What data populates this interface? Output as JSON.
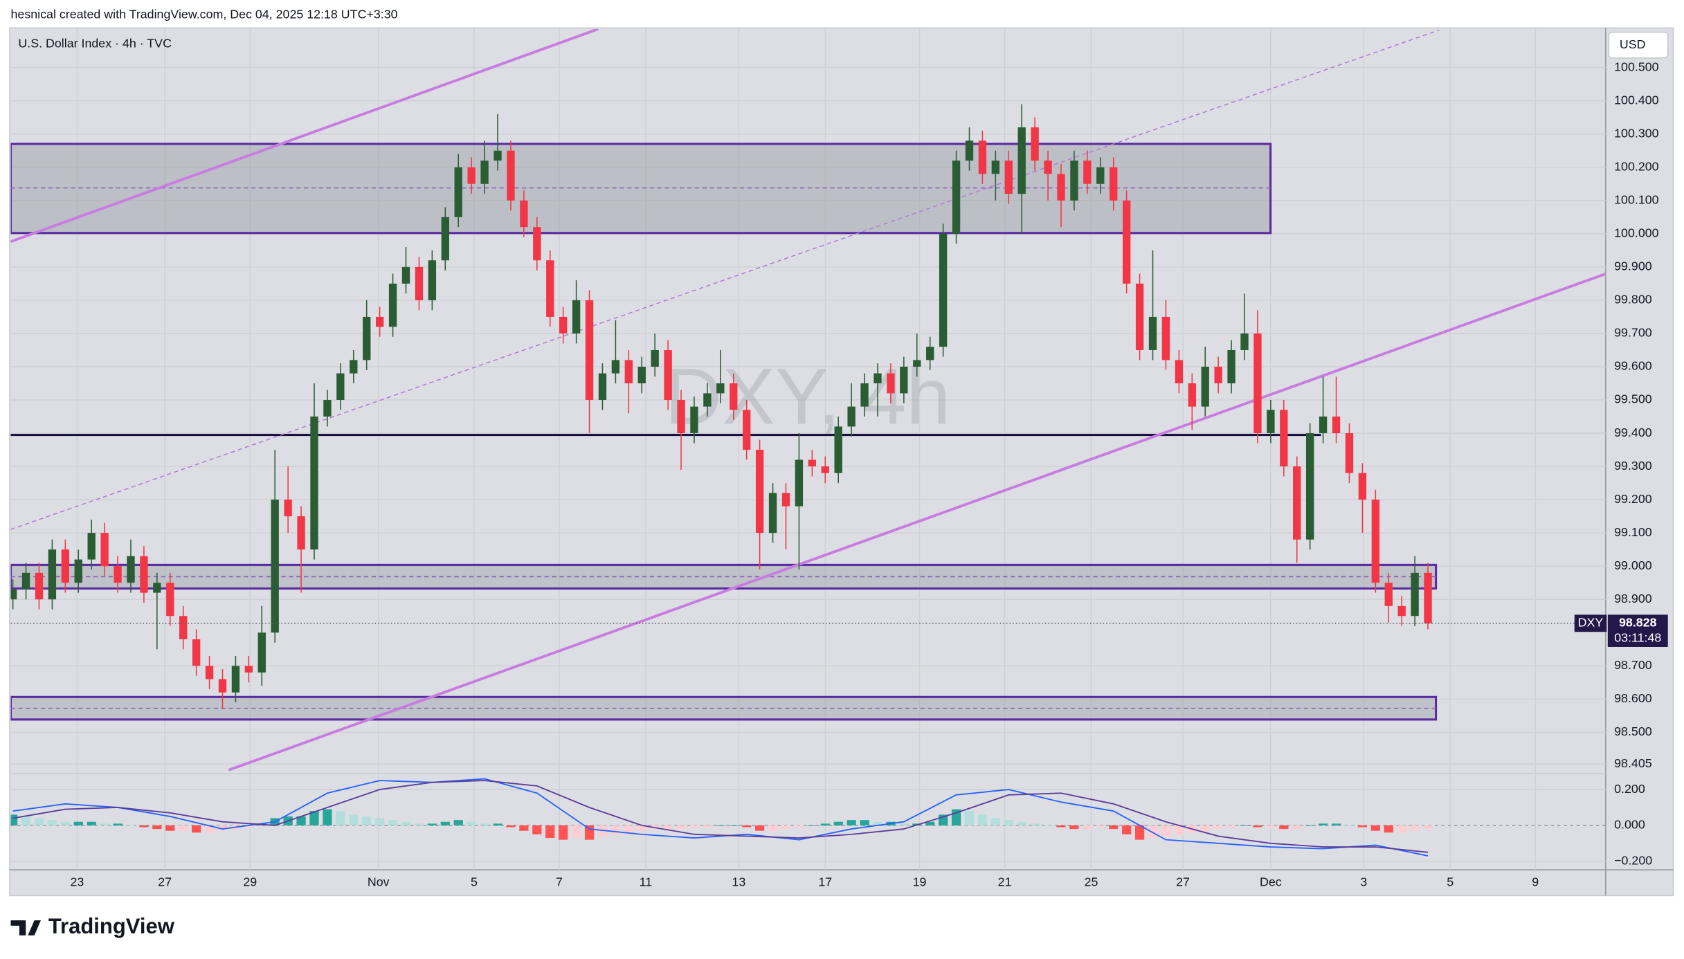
{
  "header": {
    "attribution": "hesnical created with TradingView.com, Dec 04, 2025 12:18 UTC+3:30",
    "logo": "TradingView"
  },
  "chart_data": {
    "type": "candlestick",
    "title": "U.S. Dollar Index · 4h · TVC",
    "watermark": "DXY, 4h",
    "currency": "USD",
    "symbol": "DXY",
    "countdown": "03:11:48",
    "x": [
      0,
      1,
      2,
      3,
      4,
      5,
      6,
      7,
      8,
      9,
      10,
      11,
      12,
      13,
      14,
      15,
      16,
      17,
      18,
      19,
      20,
      21,
      22,
      23,
      24,
      25,
      26,
      27,
      28,
      29,
      30,
      31,
      32,
      33,
      34,
      35,
      36,
      37,
      38,
      39,
      40,
      41,
      42,
      43,
      44,
      45,
      46,
      47,
      48,
      49,
      50,
      51,
      52,
      53,
      54,
      55,
      56,
      57,
      58,
      59,
      60,
      61,
      62,
      63,
      64,
      65,
      66,
      67,
      68,
      69,
      70,
      71,
      72,
      73,
      74,
      75,
      76,
      77,
      78,
      79,
      80,
      81,
      82,
      83,
      84,
      85,
      86,
      87,
      88,
      89,
      90,
      91,
      92,
      93,
      94,
      95,
      96,
      97,
      98,
      99,
      100,
      101,
      102,
      103,
      104,
      105,
      106,
      107,
      108
    ],
    "open": [
      98.9,
      98.93,
      98.98,
      98.9,
      99.05,
      98.95,
      99.02,
      99.1,
      99.0,
      98.95,
      99.03,
      98.92,
      98.95,
      98.85,
      98.78,
      98.7,
      98.66,
      98.62,
      98.7,
      98.68,
      98.8,
      99.2,
      99.15,
      99.05,
      99.45,
      99.5,
      99.58,
      99.62,
      99.75,
      99.72,
      99.85,
      99.9,
      99.8,
      99.92,
      100.05,
      100.2,
      100.15,
      100.22,
      100.25,
      100.1,
      100.02,
      99.92,
      99.75,
      99.7,
      99.8,
      99.5,
      99.58,
      99.62,
      99.55,
      99.6,
      99.65,
      99.5,
      99.4,
      99.48,
      99.52,
      99.55,
      99.47,
      99.35,
      99.1,
      99.22,
      99.18,
      99.32,
      99.3,
      99.28,
      99.42,
      99.48,
      99.55,
      99.58,
      99.52,
      99.6,
      99.62,
      99.66,
      100.0,
      100.22,
      100.28,
      100.18,
      100.22,
      100.12,
      100.32,
      100.22,
      100.18,
      100.1,
      100.22,
      100.15,
      100.2,
      100.1,
      99.85,
      99.65,
      99.75,
      99.62,
      99.55,
      99.48,
      99.6,
      99.55,
      99.65,
      99.7,
      99.4,
      99.47,
      99.3,
      99.08,
      99.4,
      99.45,
      99.4,
      99.28,
      99.2,
      98.95,
      98.88,
      98.85,
      98.98
    ],
    "high": [
      98.96,
      99.01,
      99.01,
      99.08,
      99.08,
      99.05,
      99.14,
      99.13,
      99.03,
      99.08,
      99.06,
      98.98,
      98.98,
      98.88,
      98.81,
      98.73,
      98.69,
      98.73,
      98.73,
      98.88,
      99.35,
      99.3,
      99.18,
      99.55,
      99.53,
      99.61,
      99.65,
      99.8,
      99.78,
      99.88,
      99.96,
      99.93,
      99.95,
      100.08,
      100.24,
      100.23,
      100.28,
      100.36,
      100.28,
      100.13,
      100.05,
      99.95,
      99.78,
      99.86,
      99.83,
      99.61,
      99.74,
      99.65,
      99.63,
      99.7,
      99.68,
      99.53,
      99.51,
      99.55,
      99.65,
      99.58,
      99.5,
      99.38,
      99.25,
      99.25,
      99.4,
      99.35,
      99.33,
      99.45,
      99.55,
      99.58,
      99.61,
      99.61,
      99.63,
      99.7,
      99.69,
      100.03,
      100.25,
      100.32,
      100.31,
      100.25,
      100.25,
      100.39,
      100.35,
      100.25,
      100.21,
      100.25,
      100.25,
      100.23,
      100.23,
      100.13,
      99.88,
      99.95,
      99.8,
      99.65,
      99.58,
      99.66,
      99.63,
      99.68,
      99.82,
      99.77,
      99.5,
      99.5,
      99.33,
      99.43,
      99.57,
      99.57,
      99.43,
      99.31,
      99.23,
      98.98,
      98.91,
      99.03,
      99.01
    ],
    "low": [
      98.87,
      98.9,
      98.87,
      98.87,
      98.92,
      98.92,
      98.99,
      98.97,
      98.92,
      98.92,
      98.89,
      98.75,
      98.82,
      98.75,
      98.67,
      98.63,
      98.57,
      98.59,
      98.65,
      98.64,
      98.77,
      99.1,
      98.92,
      99.02,
      99.42,
      99.47,
      99.55,
      99.59,
      99.69,
      99.69,
      99.82,
      99.77,
      99.77,
      99.89,
      100.02,
      100.12,
      100.12,
      100.19,
      100.07,
      99.99,
      99.89,
      99.72,
      99.67,
      99.67,
      99.4,
      99.47,
      99.55,
      99.46,
      99.52,
      99.57,
      99.47,
      99.29,
      99.37,
      99.45,
      99.49,
      99.44,
      99.32,
      98.99,
      99.07,
      99.05,
      98.99,
      99.27,
      99.25,
      99.25,
      99.39,
      99.45,
      99.45,
      99.49,
      99.49,
      99.57,
      99.59,
      99.63,
      99.97,
      100.19,
      100.15,
      100.1,
      100.09,
      100.0,
      100.19,
      100.1,
      100.02,
      100.07,
      100.12,
      100.12,
      100.07,
      99.82,
      99.62,
      99.62,
      99.59,
      99.52,
      99.41,
      99.45,
      99.52,
      99.52,
      99.62,
      99.37,
      99.37,
      99.27,
      99.01,
      99.05,
      99.37,
      99.37,
      99.25,
      99.1,
      98.92,
      98.83,
      98.82,
      98.82,
      98.81
    ],
    "close": [
      98.93,
      98.98,
      98.9,
      99.05,
      98.95,
      99.02,
      99.1,
      99.0,
      98.95,
      99.03,
      98.92,
      98.95,
      98.85,
      98.78,
      98.7,
      98.66,
      98.62,
      98.7,
      98.68,
      98.8,
      99.2,
      99.15,
      99.05,
      99.45,
      99.5,
      99.58,
      99.62,
      99.75,
      99.72,
      99.85,
      99.9,
      99.8,
      99.92,
      100.05,
      100.2,
      100.15,
      100.22,
      100.25,
      100.1,
      100.02,
      99.92,
      99.75,
      99.7,
      99.8,
      99.5,
      99.58,
      99.62,
      99.55,
      99.6,
      99.65,
      99.5,
      99.4,
      99.48,
      99.52,
      99.55,
      99.47,
      99.35,
      99.1,
      99.22,
      99.18,
      99.32,
      99.3,
      99.28,
      99.42,
      99.48,
      99.55,
      99.58,
      99.52,
      99.6,
      99.62,
      99.66,
      100.0,
      100.22,
      100.28,
      100.18,
      100.22,
      100.12,
      100.32,
      100.22,
      100.18,
      100.1,
      100.22,
      100.15,
      100.2,
      100.1,
      99.85,
      99.65,
      99.75,
      99.62,
      99.55,
      99.48,
      99.6,
      99.55,
      99.65,
      99.7,
      99.4,
      99.47,
      99.3,
      99.08,
      99.4,
      99.45,
      99.4,
      99.28,
      99.2,
      98.95,
      98.88,
      98.85,
      98.98,
      98.828
    ],
    "up_color": "#2b5d34",
    "down_color": "#f23645",
    "xlim": [
      -0.164,
      121.56
    ],
    "ylim": [
      98.377,
      100.616
    ],
    "xticks": [
      {
        "value": 4.9,
        "label": "23"
      },
      {
        "value": 11.6,
        "label": "27"
      },
      {
        "value": 18.1,
        "label": "29"
      },
      {
        "value": 27.9,
        "label": "Nov"
      },
      {
        "value": 35.2,
        "label": "5"
      },
      {
        "value": 41.7,
        "label": "7"
      },
      {
        "value": 48.3,
        "label": "11"
      },
      {
        "value": 55.4,
        "label": "13"
      },
      {
        "value": 62,
        "label": "17"
      },
      {
        "value": 69.2,
        "label": "19"
      },
      {
        "value": 75.7,
        "label": "21"
      },
      {
        "value": 82.3,
        "label": "25"
      },
      {
        "value": 89.3,
        "label": "27"
      },
      {
        "value": 96,
        "label": "Dec"
      },
      {
        "value": 103.1,
        "label": "3"
      },
      {
        "value": 109.7,
        "label": "5"
      },
      {
        "value": 116.2,
        "label": "9"
      }
    ],
    "yticks": [
      {
        "value": 98.405,
        "label": "98.405"
      },
      {
        "value": 98.5,
        "label": "98.500"
      },
      {
        "value": 98.6,
        "label": "98.600"
      },
      {
        "value": 98.7,
        "label": "98.700"
      },
      {
        "value": 98.9,
        "label": "98.900"
      },
      {
        "value": 99,
        "label": "99.000"
      },
      {
        "value": 99.1,
        "label": "99.100"
      },
      {
        "value": 99.2,
        "label": "99.200"
      },
      {
        "value": 99.3,
        "label": "99.300"
      },
      {
        "value": 99.4,
        "label": "99.400"
      },
      {
        "value": 99.5,
        "label": "99.500"
      },
      {
        "value": 99.6,
        "label": "99.600"
      },
      {
        "value": 99.7,
        "label": "99.700"
      },
      {
        "value": 99.8,
        "label": "99.800"
      },
      {
        "value": 99.9,
        "label": "99.900"
      },
      {
        "value": 100,
        "label": "100.000"
      },
      {
        "value": 100.1,
        "label": "100.100"
      },
      {
        "value": 100.2,
        "label": "100.200"
      },
      {
        "value": 100.3,
        "label": "100.300"
      },
      {
        "value": 100.4,
        "label": "100.400"
      },
      {
        "value": 100.5,
        "label": "100.500"
      }
    ],
    "grid": true,
    "indicator": {
      "type": "macd",
      "ylim": [
        -0.248,
        0.285
      ],
      "yticks": [
        {
          "value": 0.2,
          "label": "0.200"
        },
        {
          "value": 0,
          "label": "0.000"
        },
        {
          "value": -0.2,
          "label": "−0.200"
        }
      ],
      "histogram": [
        0.06,
        0.05,
        0.04,
        0.03,
        0.02,
        0.02,
        0.02,
        0.01,
        0.01,
        0.0,
        -0.01,
        -0.02,
        -0.03,
        -0.03,
        -0.04,
        -0.04,
        -0.03,
        -0.02,
        -0.01,
        0.01,
        0.04,
        0.05,
        0.05,
        0.08,
        0.09,
        0.08,
        0.06,
        0.05,
        0.04,
        0.03,
        0.02,
        0.01,
        0.01,
        0.02,
        0.03,
        0.02,
        0.01,
        0.01,
        -0.01,
        -0.03,
        -0.05,
        -0.07,
        -0.08,
        -0.07,
        -0.08,
        -0.06,
        -0.05,
        -0.04,
        -0.03,
        -0.02,
        -0.02,
        -0.02,
        -0.01,
        -0.01,
        0.0,
        0.0,
        -0.01,
        -0.03,
        -0.03,
        -0.02,
        -0.01,
        0.0,
        0.01,
        0.02,
        0.03,
        0.03,
        0.02,
        0.02,
        0.01,
        0.01,
        0.02,
        0.06,
        0.09,
        0.08,
        0.06,
        0.04,
        0.03,
        0.02,
        0.01,
        0.0,
        -0.01,
        -0.02,
        -0.02,
        -0.01,
        -0.02,
        -0.05,
        -0.08,
        -0.07,
        -0.06,
        -0.05,
        -0.04,
        -0.03,
        -0.02,
        -0.01,
        0.0,
        -0.01,
        -0.01,
        -0.02,
        -0.02,
        0.0,
        0.01,
        0.01,
        0.0,
        -0.01,
        -0.03,
        -0.04,
        -0.04,
        -0.03,
        -0.02
      ],
      "histogram_colors": [
        "#26a69a",
        "#b2dfdb",
        "#ff5252",
        "#ffcdd2"
      ],
      "macd_line": {
        "color": "#2962ff",
        "x": [
          0,
          4,
          8,
          12,
          16,
          20,
          24,
          28,
          32,
          36,
          40,
          44,
          48,
          52,
          56,
          60,
          64,
          68,
          72,
          76,
          80,
          84,
          88,
          92,
          96,
          100,
          104,
          108
        ],
        "values": [
          0.08,
          0.12,
          0.1,
          0.05,
          -0.02,
          0.02,
          0.18,
          0.25,
          0.24,
          0.26,
          0.18,
          -0.02,
          -0.05,
          -0.07,
          -0.05,
          -0.08,
          -0.02,
          0.02,
          0.17,
          0.2,
          0.13,
          0.08,
          -0.08,
          -0.1,
          -0.12,
          -0.13,
          -0.11,
          -0.17
        ]
      },
      "signal_line": {
        "color": "#5c3d99",
        "x": [
          0,
          4,
          8,
          12,
          16,
          20,
          24,
          28,
          32,
          36,
          40,
          44,
          48,
          52,
          56,
          60,
          64,
          68,
          72,
          76,
          80,
          84,
          88,
          92,
          96,
          100,
          104,
          108
        ],
        "values": [
          0.04,
          0.09,
          0.1,
          0.07,
          0.02,
          0.0,
          0.1,
          0.2,
          0.24,
          0.25,
          0.22,
          0.1,
          0.0,
          -0.05,
          -0.06,
          -0.07,
          -0.05,
          -0.02,
          0.07,
          0.17,
          0.18,
          0.12,
          0.02,
          -0.06,
          -0.1,
          -0.12,
          -0.12,
          -0.15
        ]
      }
    }
  }
}
